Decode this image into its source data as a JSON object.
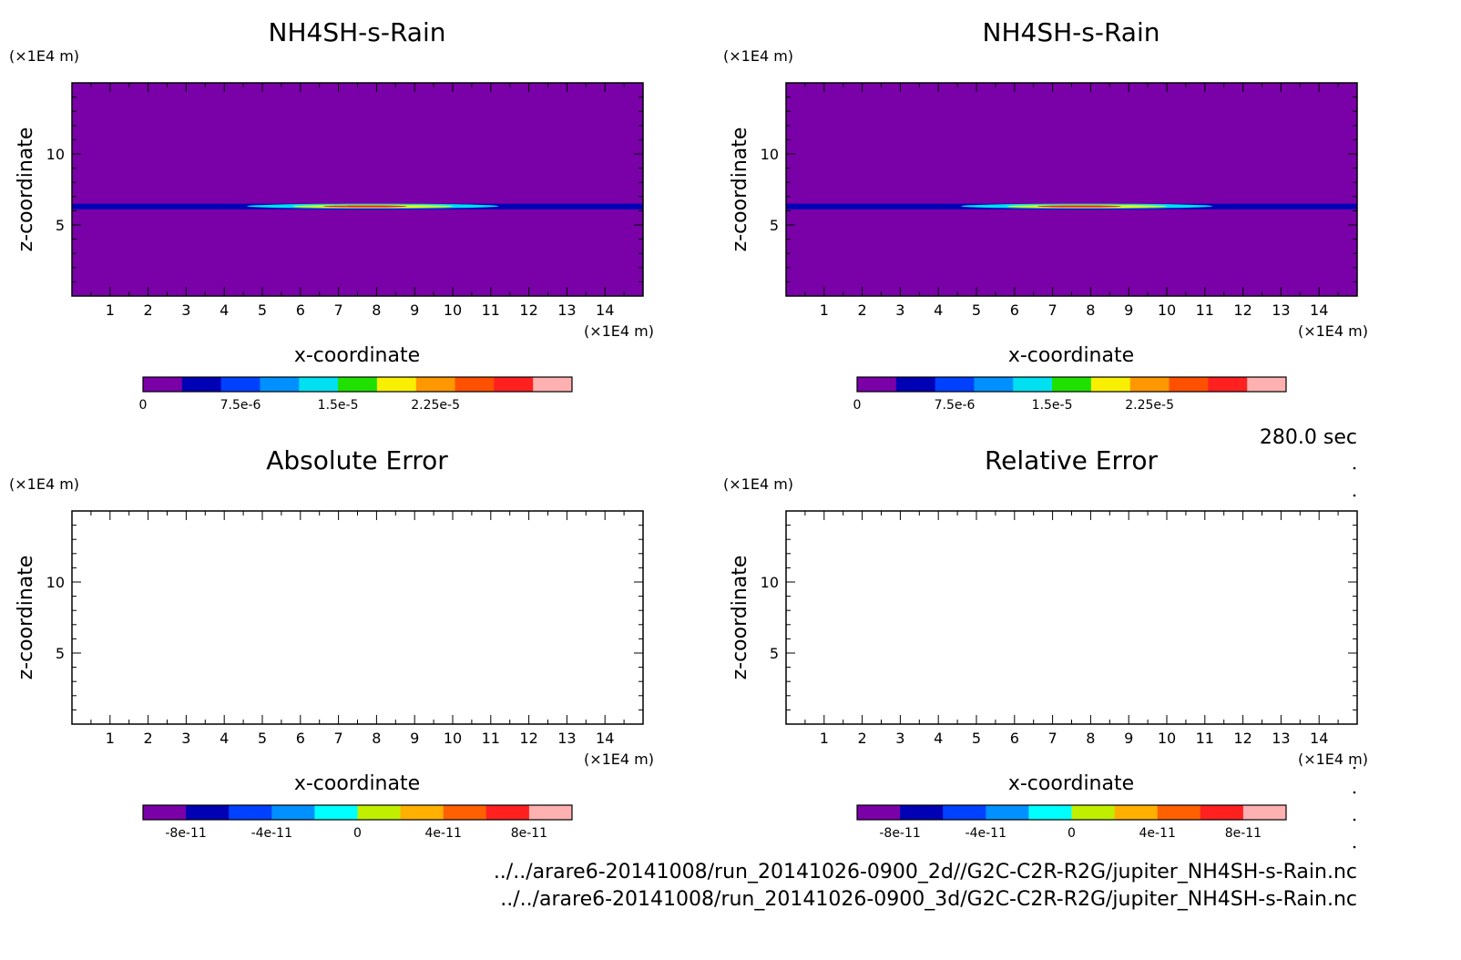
{
  "chart_data": [
    {
      "type": "heatmap",
      "title": "NH4SH-s-Rain",
      "xlabel": "x-coordinate",
      "ylabel": "z-coordinate",
      "x_unit": "(×1E4 m)",
      "y_unit": "(×1E4 m)",
      "xlim": [
        0,
        15
      ],
      "ylim": [
        0,
        15
      ],
      "xticks": [
        "1",
        "2",
        "3",
        "4",
        "5",
        "6",
        "7",
        "8",
        "9",
        "10",
        "11",
        "12",
        "13",
        "14"
      ],
      "yticks": [
        "5",
        "10"
      ],
      "field": {
        "background": 0,
        "layer_z": [
          6.1,
          6.5
        ],
        "layer_value": 5e-06,
        "bulge": [
          {
            "x": [
              3.9,
              11.8
            ],
            "z_top": 6.85,
            "value": 2.5e-06
          },
          {
            "x": [
              4.6,
              11.2
            ],
            "z": [
              6.15,
              6.5
            ],
            "value": 1.3e-05
          },
          {
            "x": [
              5.8,
              10.0
            ],
            "z": [
              6.2,
              6.42
            ],
            "value": 2.1e-05
          },
          {
            "x": [
              6.6,
              8.8
            ],
            "z": [
              6.24,
              6.38
            ],
            "value": 2.7e-05
          }
        ]
      },
      "colorbar": {
        "colors": [
          "#7a00a8",
          "#0000b4",
          "#0040ff",
          "#0090ff",
          "#00e0f0",
          "#20e000",
          "#f8f000",
          "#ff9800",
          "#ff5000",
          "#ff2020",
          "#ffb0b0"
        ],
        "labels": [
          "0",
          "7.5e-6",
          "1.5e-5",
          "2.25e-5"
        ],
        "min": 0,
        "max": 3.3e-05
      }
    },
    {
      "type": "heatmap",
      "title": "NH4SH-s-Rain",
      "xlabel": "x-coordinate",
      "ylabel": "z-coordinate",
      "x_unit": "(×1E4 m)",
      "y_unit": "(×1E4 m)",
      "xlim": [
        0,
        15
      ],
      "ylim": [
        0,
        15
      ],
      "xticks": [
        "1",
        "2",
        "3",
        "4",
        "5",
        "6",
        "7",
        "8",
        "9",
        "10",
        "11",
        "12",
        "13",
        "14"
      ],
      "yticks": [
        "5",
        "10"
      ],
      "field": {
        "background": 0,
        "layer_z": [
          6.1,
          6.5
        ],
        "layer_value": 5e-06,
        "bulge": [
          {
            "x": [
              3.9,
              11.8
            ],
            "z_top": 6.85,
            "value": 2.5e-06
          },
          {
            "x": [
              4.6,
              11.2
            ],
            "z": [
              6.15,
              6.5
            ],
            "value": 1.3e-05
          },
          {
            "x": [
              5.8,
              10.0
            ],
            "z": [
              6.2,
              6.42
            ],
            "value": 2.1e-05
          },
          {
            "x": [
              6.6,
              8.8
            ],
            "z": [
              6.24,
              6.38
            ],
            "value": 2.7e-05
          }
        ]
      },
      "colorbar": {
        "colors": [
          "#7a00a8",
          "#0000b4",
          "#0040ff",
          "#0090ff",
          "#00e0f0",
          "#20e000",
          "#f8f000",
          "#ff9800",
          "#ff5000",
          "#ff2020",
          "#ffb0b0"
        ],
        "labels": [
          "0",
          "7.5e-6",
          "1.5e-5",
          "2.25e-5"
        ],
        "min": 0,
        "max": 3.3e-05
      }
    },
    {
      "type": "heatmap",
      "title": "Absolute Error",
      "xlabel": "x-coordinate",
      "ylabel": "z-coordinate",
      "x_unit": "(×1E4 m)",
      "y_unit": "(×1E4 m)",
      "xlim": [
        0,
        15
      ],
      "ylim": [
        0,
        15
      ],
      "xticks": [
        "1",
        "2",
        "3",
        "4",
        "5",
        "6",
        "7",
        "8",
        "9",
        "10",
        "11",
        "12",
        "13",
        "14"
      ],
      "yticks": [
        "5",
        "10"
      ],
      "field": null,
      "colorbar": {
        "colors": [
          "#7a00a8",
          "#0000b4",
          "#0040ff",
          "#0090ff",
          "#00ffff",
          "#c0f000",
          "#ffb000",
          "#ff6000",
          "#ff2020",
          "#ffb0b0"
        ],
        "labels": [
          "-8e-11",
          "-4e-11",
          "0",
          "4e-11",
          "8e-11"
        ],
        "min": -1e-10,
        "max": 1e-10
      }
    },
    {
      "type": "heatmap",
      "title": "Relative Error",
      "xlabel": "x-coordinate",
      "ylabel": "z-coordinate",
      "x_unit": "(×1E4 m)",
      "y_unit": "(×1E4 m)",
      "xlim": [
        0,
        15
      ],
      "ylim": [
        0,
        15
      ],
      "xticks": [
        "1",
        "2",
        "3",
        "4",
        "5",
        "6",
        "7",
        "8",
        "9",
        "10",
        "11",
        "12",
        "13",
        "14"
      ],
      "yticks": [
        "5",
        "10"
      ],
      "field": null,
      "colorbar": {
        "colors": [
          "#7a00a8",
          "#0000b4",
          "#0040ff",
          "#0090ff",
          "#00ffff",
          "#c0f000",
          "#ffb000",
          "#ff6000",
          "#ff2020",
          "#ffb0b0"
        ],
        "labels": [
          "-8e-11",
          "-4e-11",
          "0",
          "4e-11",
          "8e-11"
        ],
        "min": -1e-10,
        "max": 1e-10
      }
    }
  ],
  "time_label": "280.0 sec",
  "file_paths": [
    "../../arare6-20141008/run_20141026-0900_2d//G2C-C2R-R2G/jupiter_NH4SH-s-Rain.nc",
    "../../arare6-20141008/run_20141026-0900_3d/G2C-C2R-R2G/jupiter_NH4SH-s-Rain.nc"
  ]
}
